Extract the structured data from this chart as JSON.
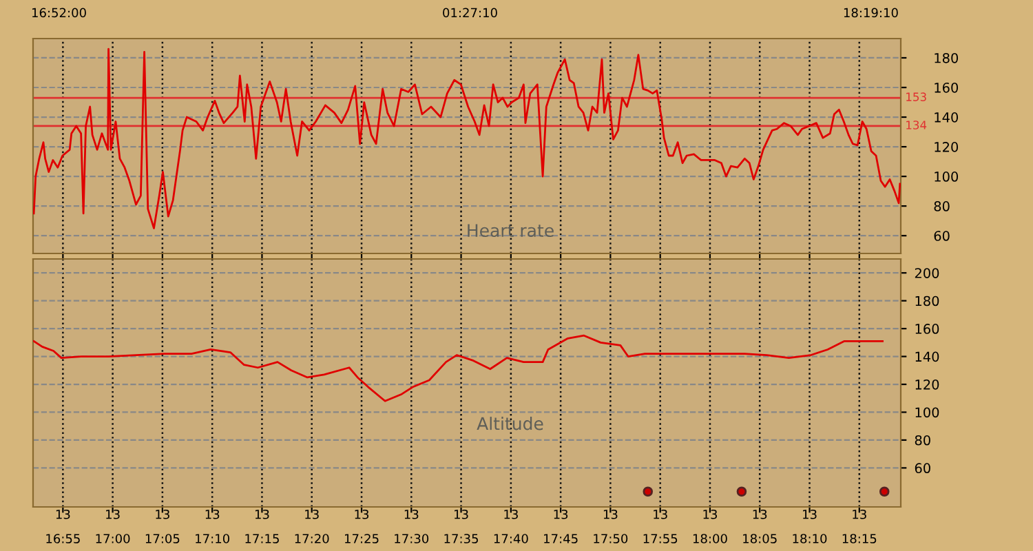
{
  "chart_data": [
    {
      "type": "line",
      "xlim": [
        16.8667,
        18.3194
      ],
      "ylim": [
        48,
        193
      ],
      "tick_labels": "y",
      "grid": true,
      "marker": "none",
      "line_style": "solid",
      "xticks": [
        {
          "value": 16.9167,
          "label": null
        },
        {
          "value": 17.0,
          "label": null
        },
        {
          "value": 17.0833,
          "label": null
        },
        {
          "value": 17.1667,
          "label": null
        },
        {
          "value": 17.25,
          "label": null
        },
        {
          "value": 17.3333,
          "label": null
        },
        {
          "value": 17.4167,
          "label": null
        },
        {
          "value": 17.5,
          "label": null
        },
        {
          "value": 17.5833,
          "label": null
        },
        {
          "value": 17.6667,
          "label": null
        },
        {
          "value": 17.75,
          "label": null
        },
        {
          "value": 17.8333,
          "label": null
        },
        {
          "value": 17.9167,
          "label": null
        },
        {
          "value": 18.0,
          "label": null
        },
        {
          "value": 18.0833,
          "label": null
        },
        {
          "value": 18.1667,
          "label": null
        },
        {
          "value": 18.25,
          "label": null
        }
      ],
      "yticks": [
        60,
        80,
        100,
        120,
        140,
        160,
        180
      ],
      "ref_lines": [
        {
          "axis": "y",
          "value": 153,
          "label": "153",
          "color": "#e03030"
        },
        {
          "axis": "y",
          "value": 134,
          "label": "134",
          "color": "#e03030"
        }
      ],
      "annotations": [
        "16:52:00",
        "01:27:10",
        "18:19:10",
        "Heart rate"
      ],
      "series": [
        {
          "color": "#e00000",
          "x": [
            16.868,
            16.871,
            16.877,
            16.884,
            16.887,
            16.893,
            16.9,
            16.908,
            16.916,
            16.928,
            16.931,
            16.939,
            16.947,
            16.951,
            16.955,
            16.962,
            16.966,
            16.974,
            16.982,
            16.992,
            16.993,
            16.997,
            17.005,
            17.012,
            17.02,
            17.028,
            17.039,
            17.047,
            17.053,
            17.059,
            17.069,
            17.078,
            17.084,
            17.093,
            17.101,
            17.113,
            17.117,
            17.124,
            17.14,
            17.151,
            17.159,
            17.171,
            17.178,
            17.186,
            17.201,
            17.209,
            17.213,
            17.221,
            17.225,
            17.232,
            17.24,
            17.248,
            17.263,
            17.275,
            17.282,
            17.29,
            17.298,
            17.309,
            17.317,
            17.329,
            17.34,
            17.356,
            17.371,
            17.383,
            17.394,
            17.406,
            17.414,
            17.421,
            17.433,
            17.441,
            17.452,
            17.46,
            17.471,
            17.483,
            17.495,
            17.506,
            17.518,
            17.533,
            17.549,
            17.56,
            17.572,
            17.583,
            17.595,
            17.606,
            17.614,
            17.622,
            17.63,
            17.637,
            17.645,
            17.653,
            17.661,
            17.668,
            17.68,
            17.688,
            17.691,
            17.699,
            17.711,
            17.72,
            17.726,
            17.738,
            17.745,
            17.757,
            17.765,
            17.772,
            17.78,
            17.788,
            17.796,
            17.803,
            17.811,
            17.819,
            17.823,
            17.83,
            17.838,
            17.846,
            17.853,
            17.861,
            17.869,
            17.873,
            17.88,
            17.888,
            17.896,
            17.904,
            17.911,
            17.919,
            17.923,
            17.931,
            17.938,
            17.946,
            17.954,
            17.961,
            17.973,
            17.985,
            17.996,
            18.008,
            18.019,
            18.027,
            18.035,
            18.046,
            18.058,
            18.066,
            18.073,
            18.081,
            18.089,
            18.097,
            18.104,
            18.112,
            18.124,
            18.135,
            18.147,
            18.154,
            18.166,
            18.178,
            18.189,
            18.201,
            18.208,
            18.216,
            18.224,
            18.232,
            18.239,
            18.247,
            18.255,
            18.262,
            18.27,
            18.278,
            18.286,
            18.293,
            18.301,
            18.309,
            18.316,
            18.318
          ],
          "values": [
            75,
            100,
            112,
            123,
            112,
            103,
            111,
            106,
            114,
            118,
            129,
            134,
            129,
            75,
            134,
            147,
            128,
            118,
            129,
            118,
            186,
            118,
            137,
            112,
            106,
            97,
            81,
            87,
            184,
            78,
            65,
            87,
            103,
            73,
            84,
            118,
            131,
            140,
            137,
            131,
            140,
            151,
            143,
            136,
            143,
            147,
            168,
            137,
            162,
            147,
            112,
            147,
            164,
            150,
            137,
            159,
            137,
            114,
            137,
            131,
            137,
            148,
            143,
            136,
            145,
            161,
            122,
            150,
            128,
            122,
            159,
            143,
            134,
            159,
            157,
            162,
            142,
            147,
            140,
            156,
            165,
            162,
            147,
            137,
            128,
            148,
            134,
            162,
            150,
            153,
            147,
            150,
            153,
            162,
            136,
            156,
            162,
            100,
            147,
            162,
            170,
            179,
            165,
            163,
            147,
            143,
            131,
            147,
            143,
            179,
            143,
            156,
            125,
            131,
            153,
            147,
            159,
            165,
            182,
            159,
            158,
            156,
            158,
            139,
            126,
            114,
            114,
            123,
            109,
            114,
            115,
            111,
            111,
            111,
            109,
            100,
            107,
            106,
            112,
            109,
            98,
            107,
            118,
            125,
            131,
            132,
            136,
            134,
            128,
            132,
            134,
            136,
            126,
            129,
            142,
            145,
            137,
            128,
            122,
            121,
            137,
            132,
            117,
            114,
            97,
            93,
            98,
            90,
            82,
            95
          ]
        }
      ]
    },
    {
      "type": "line",
      "xlim": [
        16.8667,
        18.3194
      ],
      "ylim": [
        32,
        210
      ],
      "grid": true,
      "marker": "none",
      "line_style": "solid",
      "xticks": [
        {
          "value": 16.9167,
          "label": "16:55"
        },
        {
          "value": 17.0,
          "label": "17:00"
        },
        {
          "value": 17.0833,
          "label": "17:05"
        },
        {
          "value": 17.1667,
          "label": "17:10"
        },
        {
          "value": 17.25,
          "label": "17:15"
        },
        {
          "value": 17.3333,
          "label": "17:20"
        },
        {
          "value": 17.4167,
          "label": "17:25"
        },
        {
          "value": 17.5,
          "label": "17:30"
        },
        {
          "value": 17.5833,
          "label": "17:35"
        },
        {
          "value": 17.6667,
          "label": "17:40"
        },
        {
          "value": 17.75,
          "label": "17:45"
        },
        {
          "value": 17.8333,
          "label": "17:50"
        },
        {
          "value": 17.9167,
          "label": "17:55"
        },
        {
          "value": 18.0,
          "label": "18:00"
        },
        {
          "value": 18.0833,
          "label": "18:05"
        },
        {
          "value": 18.1667,
          "label": "18:10"
        },
        {
          "value": 18.25,
          "label": "18:15"
        }
      ],
      "yticks": [
        60,
        80,
        100,
        120,
        140,
        160,
        180,
        200
      ],
      "annotations": [
        "Altitude",
        "13",
        "13",
        "13",
        "13",
        "13",
        "13",
        "13",
        "13",
        "13",
        "13",
        "13",
        "13",
        "13",
        "13",
        "13",
        "13",
        "13"
      ],
      "series": [
        {
          "color": "#e00000",
          "x": [
            16.868,
            16.882,
            16.901,
            16.914,
            16.947,
            16.993,
            17.039,
            17.086,
            17.132,
            17.164,
            17.197,
            17.22,
            17.243,
            17.276,
            17.299,
            17.326,
            17.354,
            17.396,
            17.41,
            17.428,
            17.456,
            17.484,
            17.502,
            17.53,
            17.558,
            17.576,
            17.604,
            17.632,
            17.66,
            17.688,
            17.72,
            17.729,
            17.762,
            17.789,
            17.817,
            17.85,
            17.863,
            17.891,
            17.965,
            18.058,
            18.095,
            18.132,
            18.169,
            18.197,
            18.225,
            18.289
          ],
          "values": [
            151,
            147,
            144,
            139,
            140,
            140,
            141,
            142,
            142,
            145,
            143,
            134,
            132,
            136,
            130,
            125,
            127,
            132,
            125,
            118,
            108,
            113,
            118,
            123,
            136,
            141,
            137,
            131,
            139,
            136,
            136,
            145,
            153,
            155,
            150,
            148,
            140,
            142,
            142,
            142,
            141,
            139,
            141,
            145,
            151,
            151
          ]
        },
        {
          "type": "scatter",
          "color": "#cc0000",
          "marker": "circle",
          "x": [
            17.896,
            18.053,
            18.292
          ],
          "values": [
            43,
            43,
            43
          ]
        }
      ]
    }
  ]
}
